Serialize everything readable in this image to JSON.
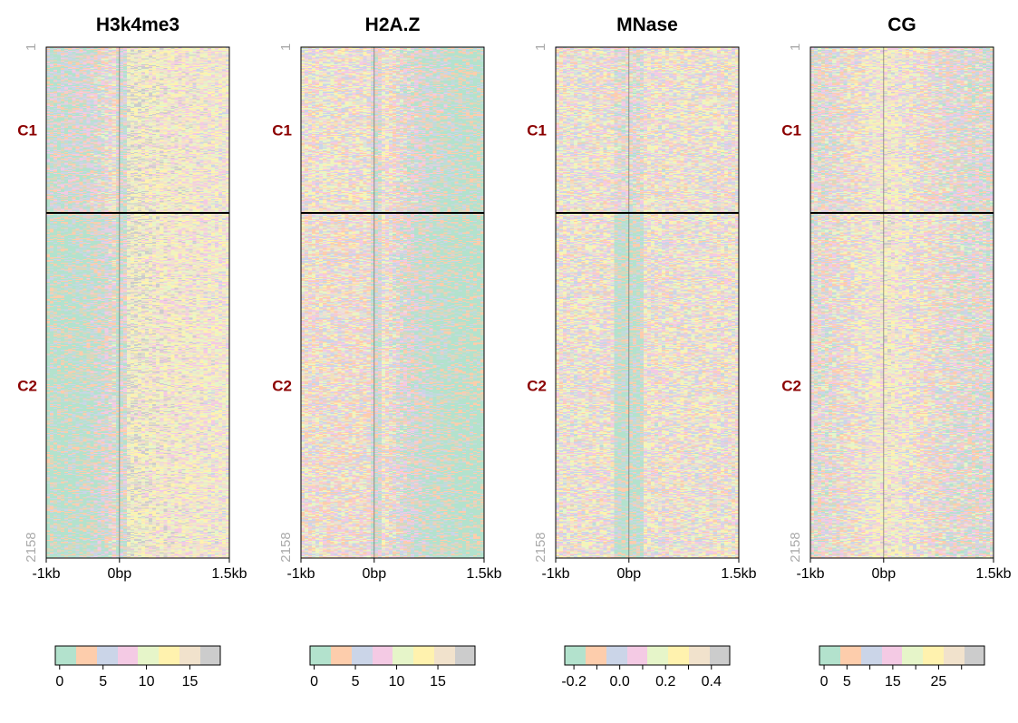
{
  "chart_data": {
    "type": "heatmap",
    "row_range": [
      "1",
      "2158"
    ],
    "clusters": [
      {
        "label": "C1",
        "start_row": 1,
        "end_row": 700
      },
      {
        "label": "C2",
        "start_row": 701,
        "end_row": 2158
      }
    ],
    "x_ticks": [
      "-1kb",
      "0bp",
      "1.5kb"
    ],
    "x_range_bp": [
      -1000,
      1500
    ],
    "palette": [
      "#b3e2cd",
      "#fdcdac",
      "#cbd5e8",
      "#f4cae4",
      "#e6f5c9",
      "#fff2ae",
      "#f1e2cc",
      "#cccccc"
    ],
    "panels": [
      {
        "title": "H3k4me3",
        "colorbar": {
          "min": -0.5,
          "max": 18.5,
          "ticks": [
            0,
            5,
            10,
            15
          ],
          "tick_labels": [
            "0",
            "5",
            "10",
            "15"
          ]
        }
      },
      {
        "title": "H2A.Z",
        "colorbar": {
          "min": -0.5,
          "max": 19.5,
          "ticks": [
            0,
            5,
            10,
            15
          ],
          "tick_labels": [
            "0",
            "5",
            "10",
            "15"
          ]
        }
      },
      {
        "title": "MNase",
        "colorbar": {
          "min": -0.24,
          "max": 0.48,
          "ticks": [
            -0.2,
            0.0,
            0.2,
            0.4
          ],
          "minor_ticks": [
            -0.1,
            0.1,
            0.3
          ],
          "tick_labels": [
            "-0.2",
            "0.0",
            "0.2",
            "0.4"
          ]
        }
      },
      {
        "title": "CG",
        "colorbar": {
          "min": -1,
          "max": 35,
          "ticks": [
            0,
            5,
            15,
            25
          ],
          "minor_ticks": [
            10,
            20,
            30
          ],
          "tick_labels": [
            "0",
            "5",
            "15",
            "25"
          ]
        }
      }
    ]
  }
}
